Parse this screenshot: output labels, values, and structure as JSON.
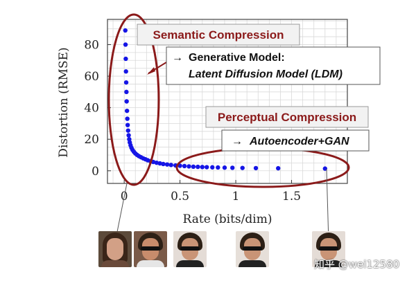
{
  "chart_data": {
    "type": "scatter",
    "title": "",
    "xlabel": "Rate (bits/dim)",
    "ylabel": "Distortion (RMSE)",
    "xlim": [
      -0.15,
      2.0
    ],
    "ylim": [
      -8,
      96
    ],
    "xticks": [
      0,
      0.5,
      1,
      1.5
    ],
    "xtick_labels": [
      "0",
      "0.5",
      "1",
      "1.5"
    ],
    "yticks": [
      0,
      20,
      40,
      60,
      80
    ],
    "ytick_labels": [
      "0",
      "20",
      "40",
      "60",
      "80"
    ],
    "grid": true,
    "marker_color": "#1515e6",
    "series": [
      {
        "x": [
          0.01,
          0.012,
          0.014,
          0.016,
          0.018,
          0.02,
          0.022,
          0.025,
          0.028,
          0.031,
          0.035,
          0.04,
          0.045,
          0.05,
          0.057,
          0.065,
          0.075,
          0.087,
          0.1,
          0.115,
          0.132,
          0.15,
          0.17,
          0.19,
          0.21,
          0.235,
          0.26,
          0.29,
          0.32,
          0.35,
          0.385,
          0.42,
          0.46,
          0.5,
          0.54,
          0.58,
          0.62,
          0.66,
          0.7,
          0.74,
          0.79,
          0.84,
          0.9,
          0.97,
          1.06,
          1.18,
          1.38,
          1.8
        ],
        "y": [
          89,
          80,
          71,
          63,
          56,
          50,
          44,
          38,
          33,
          29,
          25.5,
          22.5,
          20,
          18,
          16.2,
          14.6,
          13.2,
          12,
          11,
          10.1,
          9.3,
          8.6,
          7.9,
          7.3,
          6.7,
          6.1,
          5.6,
          5.1,
          4.7,
          4.3,
          4,
          3.7,
          3.4,
          3.2,
          3.0,
          2.8,
          2.6,
          2.5,
          2.4,
          2.3,
          2.2,
          2.1,
          2.0,
          1.9,
          1.8,
          1.7,
          1.6,
          1.4
        ]
      }
    ],
    "annotations": {
      "semantic": {
        "title": "Semantic Compression",
        "arrow_glyph": "→",
        "body_line1": "Generative Model:",
        "body_line2": "Latent Diffusion Model (LDM)"
      },
      "perceptual": {
        "title": "Perceptual Compression",
        "arrow_glyph": "→",
        "body_line1": "Autoencoder+GAN"
      },
      "callout_color": "#8b1a1a"
    }
  },
  "watermark": "知乎 @wei12580"
}
